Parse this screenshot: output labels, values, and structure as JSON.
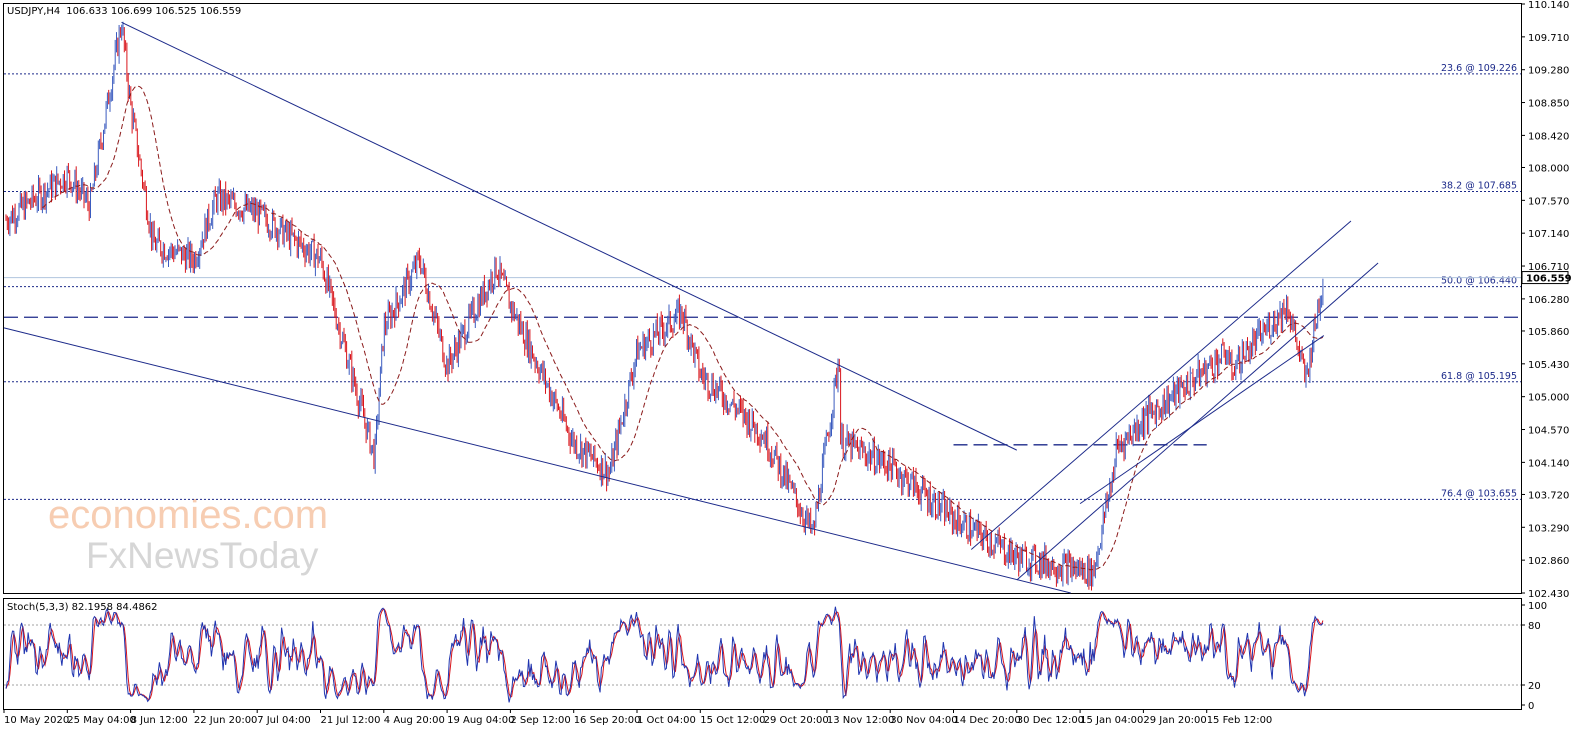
{
  "header": {
    "symbol": "USDJPY,H4",
    "ohlc": "106.633 106.699 106.525 106.559"
  },
  "watermark": {
    "line1": "economies.com",
    "line2": "FxNewsToday"
  },
  "colors": {
    "bull": "#3b5bbf",
    "bear": "#d9151b",
    "trendline": "#1c2a8a",
    "ma": "#8b1b1b",
    "fib": "#1c2a8a",
    "stoch_main": "#2035b0",
    "stoch_signal": "#d9151b"
  },
  "chart_data": [
    {
      "type": "candlestick",
      "symbol": "USDJPY",
      "timeframe": "H4",
      "ylim": [
        102.43,
        110.14
      ],
      "y_ticks": [
        "110.140",
        "109.710",
        "109.280",
        "108.850",
        "108.420",
        "108.000",
        "107.570",
        "107.140",
        "106.710",
        "106.280",
        "105.860",
        "105.430",
        "105.000",
        "104.570",
        "104.140",
        "103.720",
        "103.290",
        "102.860",
        "102.430"
      ],
      "x_ticks": [
        "10 May 2020",
        "25 May 04:00",
        "8 Jun 12:00",
        "22 Jun 20:00",
        "7 Jul 04:00",
        "21 Jul 12:00",
        "4 Aug 20:00",
        "19 Aug 04:00",
        "2 Sep 12:00",
        "16 Sep 20:00",
        "1 Oct 04:00",
        "15 Oct 12:00",
        "29 Oct 20:00",
        "13 Nov 12:00",
        "30 Nov 04:00",
        "14 Dec 20:00",
        "30 Dec 12:00",
        "15 Jan 04:00",
        "29 Jan 20:00",
        "15 Feb 12:00"
      ],
      "current_price": "106.559",
      "price_path": [
        {
          "t": "10 May 2020",
          "price": 107.3
        },
        {
          "t": "25 May 04:00",
          "price": 107.9
        },
        {
          "t": "29 May",
          "price": 107.5
        },
        {
          "t": "5 Jun",
          "price": 109.9
        },
        {
          "t": "8 Jun 12:00",
          "price": 108.8
        },
        {
          "t": "12 Jun",
          "price": 107.0
        },
        {
          "t": "22 Jun 20:00",
          "price": 106.8
        },
        {
          "t": "26 Jun",
          "price": 107.6
        },
        {
          "t": "7 Jul 04:00",
          "price": 107.4
        },
        {
          "t": "21 Jul 12:00",
          "price": 106.8
        },
        {
          "t": "31 Jul",
          "price": 104.2
        },
        {
          "t": "4 Aug 20:00",
          "price": 105.9
        },
        {
          "t": "10 Aug",
          "price": 106.8
        },
        {
          "t": "19 Aug 04:00",
          "price": 105.4
        },
        {
          "t": "27 Aug",
          "price": 106.7
        },
        {
          "t": "2 Sep 12:00",
          "price": 106.2
        },
        {
          "t": "16 Sep 20:00",
          "price": 104.4
        },
        {
          "t": "21 Sep",
          "price": 104.0
        },
        {
          "t": "1 Oct 04:00",
          "price": 105.6
        },
        {
          "t": "7 Oct",
          "price": 106.1
        },
        {
          "t": "15 Oct 12:00",
          "price": 105.3
        },
        {
          "t": "29 Oct 20:00",
          "price": 104.5
        },
        {
          "t": "5 Nov",
          "price": 103.2
        },
        {
          "t": "11 Nov",
          "price": 105.6
        },
        {
          "t": "13 Nov 12:00",
          "price": 104.5
        },
        {
          "t": "30 Nov 04:00",
          "price": 104.1
        },
        {
          "t": "14 Dec 20:00",
          "price": 103.4
        },
        {
          "t": "30 Dec 12:00",
          "price": 102.9
        },
        {
          "t": "6 Jan",
          "price": 102.7
        },
        {
          "t": "11 Jan",
          "price": 104.2
        },
        {
          "t": "15 Jan 04:00",
          "price": 103.8
        },
        {
          "t": "29 Jan 20:00",
          "price": 104.7
        },
        {
          "t": "5 Feb",
          "price": 105.6
        },
        {
          "t": "15 Feb 12:00",
          "price": 105.0
        },
        {
          "t": "18 Feb",
          "price": 106.2
        },
        {
          "t": "22 Feb",
          "price": 105.2
        },
        {
          "t": "26 Feb",
          "price": 106.6
        }
      ],
      "fibonacci": [
        {
          "label": "23.6 @ 109.226",
          "value": 109.226
        },
        {
          "label": "38.2 @ 107.685",
          "value": 107.685
        },
        {
          "label": "50.0 @ 106.440",
          "value": 106.44
        },
        {
          "label": "61.8 @ 105.195",
          "value": 105.195
        },
        {
          "label": "76.4 @ 103.655",
          "value": 103.655
        }
      ],
      "horizontal_lines": [
        {
          "style": "dashed",
          "value": 106.04
        },
        {
          "style": "dashed",
          "value": 104.37,
          "from": "14 Dec 20:00",
          "to": "15 Feb 12:00"
        }
      ],
      "trendlines": [
        {
          "name": "falling channel upper",
          "from": {
            "t": "5 Jun",
            "price": 109.9
          },
          "to": {
            "t": "30 Dec 12:00",
            "price": 104.3
          }
        },
        {
          "name": "falling channel lower",
          "from": {
            "t": "10 May 2020",
            "price": 105.9
          },
          "to": {
            "t": "1 Jan",
            "price": 102.43
          }
        },
        {
          "name": "rising channel upper",
          "from": {
            "t": "10 Dec",
            "price": 103.0
          },
          "to": {
            "t": "4 Mar",
            "price": 107.3
          }
        },
        {
          "name": "rising channel middle",
          "from": {
            "t": "30 Dec 12:00",
            "price": 102.6
          },
          "to": {
            "t": "10 Mar",
            "price": 106.75
          }
        },
        {
          "name": "rising channel lower",
          "from": {
            "t": "15 Jan 04:00",
            "price": 103.6
          },
          "to": {
            "t": "26 Feb",
            "price": 105.8
          }
        }
      ]
    },
    {
      "type": "line",
      "title": "Stoch(5,3,3) 82.1958 84.4862",
      "ylim": [
        0,
        100
      ],
      "y_ticks": [
        "100",
        "80",
        "20",
        "0"
      ],
      "levels": [
        80,
        20
      ],
      "series": [
        {
          "name": "%K",
          "last": 82.1958
        },
        {
          "name": "%D",
          "last": 84.4862
        }
      ]
    }
  ]
}
